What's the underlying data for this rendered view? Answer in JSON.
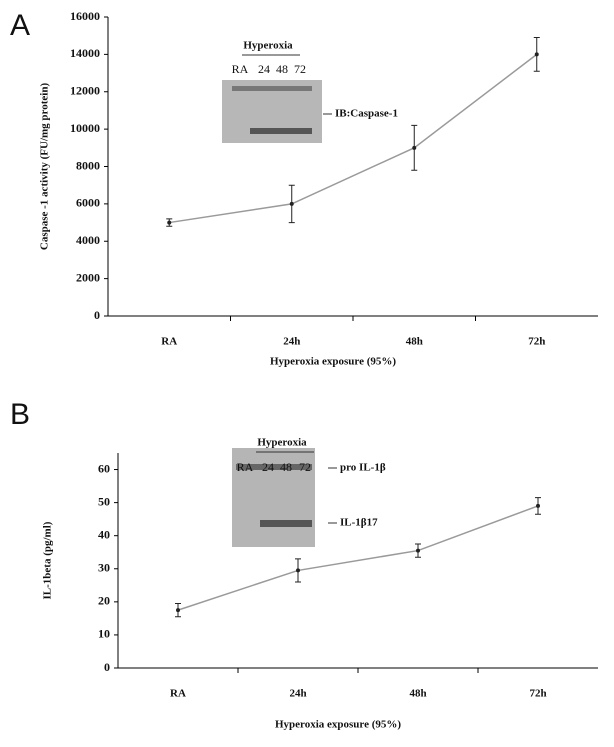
{
  "chart_data": [
    {
      "type": "line",
      "panel_label": "A",
      "y_label": "Caspase -1 activity (FU/mg protein)",
      "x_label": "Hyperoxia exposure (95%)",
      "categories": [
        "RA",
        "24h",
        "48h",
        "72h"
      ],
      "values": [
        5000,
        6000,
        9000,
        14000
      ],
      "errors": [
        200,
        1000,
        1200,
        900
      ],
      "color": "#9a9a9a",
      "ylim": [
        0,
        16000
      ],
      "yticks": [
        0,
        2000,
        4000,
        6000,
        8000,
        10000,
        12000,
        14000,
        16000
      ],
      "inset": {
        "title": "Hyperoxia",
        "lanes": [
          "RA",
          "24",
          "48",
          "72"
        ],
        "labels": [
          "IB:Caspase-1"
        ]
      }
    },
    {
      "type": "line",
      "panel_label": "B",
      "y_label": "IL-1beta (pg/ml)",
      "x_label": "Hyperoxia exposure (95%)",
      "categories": [
        "RA",
        "24h",
        "48h",
        "72h"
      ],
      "values": [
        17.5,
        29.5,
        35.5,
        49
      ],
      "errors": [
        2,
        3.5,
        2,
        2.5
      ],
      "color": "#9a9a9a",
      "ylim": [
        0,
        65
      ],
      "yticks": [
        0,
        10,
        20,
        30,
        40,
        50,
        60
      ],
      "inset": {
        "title": "Hyperoxia",
        "lanes": [
          "RA",
          "24",
          "48",
          "72"
        ],
        "labels": [
          "pro IL-1β",
          "IL-1β17"
        ]
      }
    }
  ]
}
